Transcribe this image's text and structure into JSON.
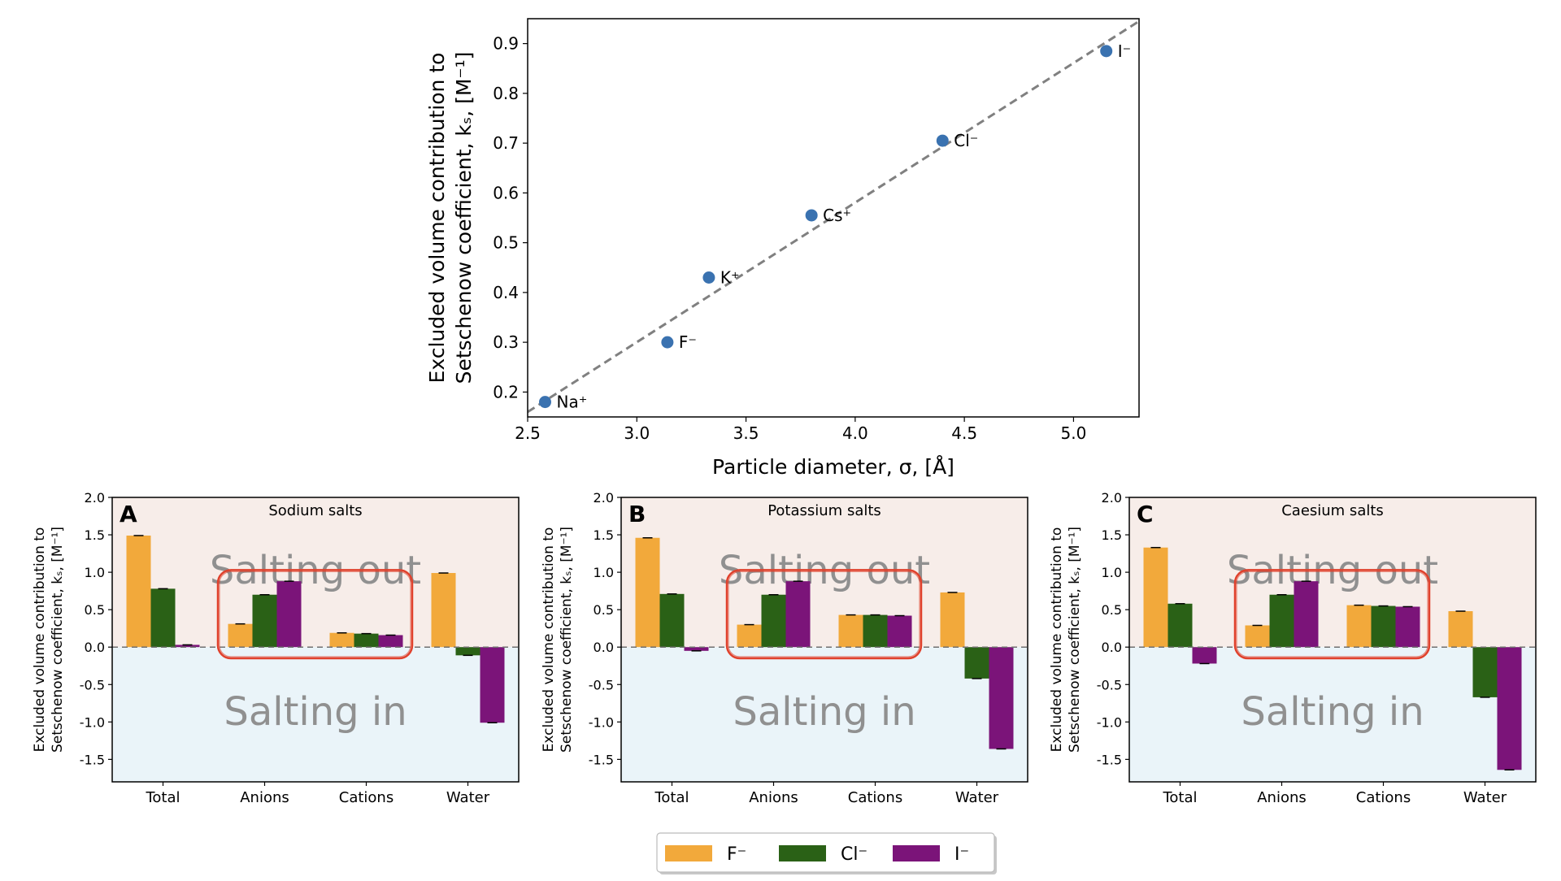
{
  "colors": {
    "f": "#f2a93b",
    "cl": "#2a6116",
    "i": "#7b1479",
    "scatter_point": "#3a72b0",
    "fit_line": "#808080",
    "bg_out": "#f7ede9",
    "bg_in": "#eaf4f9",
    "highlight_box": "#e0412c",
    "region_text": "#909090"
  },
  "legend": {
    "items": [
      {
        "key": "f",
        "label": "F⁻"
      },
      {
        "key": "cl",
        "label": "Cl⁻"
      },
      {
        "key": "i",
        "label": "I⁻"
      }
    ]
  },
  "chart_data": [
    {
      "type": "scatter",
      "xlabel": "Particle diameter, σ, [Å]",
      "ylabel_line1": "Excluded volume contribution to",
      "ylabel_line2": "Setschenow coefficient, kₛ, [M⁻¹]",
      "xlim": [
        2.5,
        5.3
      ],
      "ylim": [
        0.15,
        0.95
      ],
      "xticks": [
        2.5,
        3.0,
        3.5,
        4.0,
        4.5,
        5.0
      ],
      "yticks": [
        0.2,
        0.3,
        0.4,
        0.5,
        0.6,
        0.7,
        0.8,
        0.9
      ],
      "points": [
        {
          "label": "Na⁺",
          "x": 2.58,
          "y": 0.18
        },
        {
          "label": "F⁻",
          "x": 3.14,
          "y": 0.3
        },
        {
          "label": "K⁺",
          "x": 3.33,
          "y": 0.43
        },
        {
          "label": "Cs⁺",
          "x": 3.8,
          "y": 0.555
        },
        {
          "label": "Cl⁻",
          "x": 4.4,
          "y": 0.705
        },
        {
          "label": "I⁻",
          "x": 5.15,
          "y": 0.885
        }
      ],
      "fit_line": {
        "x": [
          2.5,
          5.3
        ],
        "y": [
          0.16,
          0.945
        ]
      }
    },
    {
      "type": "bar",
      "panel_letter": "A",
      "title": "Sodium salts",
      "categories": [
        "Total",
        "Anions",
        "Cations",
        "Water"
      ],
      "series": [
        {
          "key": "f",
          "name": "F⁻",
          "values": [
            1.49,
            0.31,
            0.19,
            0.99
          ]
        },
        {
          "key": "cl",
          "name": "Cl⁻",
          "values": [
            0.78,
            0.7,
            0.18,
            -0.11
          ]
        },
        {
          "key": "i",
          "name": "I⁻",
          "values": [
            0.03,
            0.88,
            0.16,
            -1.01
          ]
        }
      ],
      "ylim": [
        -1.8,
        2.0
      ],
      "yticks": [
        -1.5,
        -1.0,
        -0.5,
        0.0,
        0.5,
        1.0,
        1.5,
        2.0
      ],
      "ylabel_line1": "Excluded volume contribution to",
      "ylabel_line2": "Setschenow coefficient, kₛ, [M⁻¹]",
      "region_out": "Salting out",
      "region_in": "Salting in"
    },
    {
      "type": "bar",
      "panel_letter": "B",
      "title": "Potassium salts",
      "categories": [
        "Total",
        "Anions",
        "Cations",
        "Water"
      ],
      "series": [
        {
          "key": "f",
          "name": "F⁻",
          "values": [
            1.46,
            0.3,
            0.43,
            0.73
          ]
        },
        {
          "key": "cl",
          "name": "Cl⁻",
          "values": [
            0.71,
            0.7,
            0.43,
            -0.42
          ]
        },
        {
          "key": "i",
          "name": "I⁻",
          "values": [
            -0.05,
            0.88,
            0.42,
            -1.36
          ]
        }
      ],
      "ylim": [
        -1.8,
        2.0
      ],
      "yticks": [
        -1.5,
        -1.0,
        -0.5,
        0.0,
        0.5,
        1.0,
        1.5,
        2.0
      ],
      "ylabel_line1": "Excluded volume contribution to",
      "ylabel_line2": "Setschenow coefficient, kₛ, [M⁻¹]",
      "region_out": "Salting out",
      "region_in": "Salting in"
    },
    {
      "type": "bar",
      "panel_letter": "C",
      "title": "Caesium salts",
      "categories": [
        "Total",
        "Anions",
        "Cations",
        "Water"
      ],
      "series": [
        {
          "key": "f",
          "name": "F⁻",
          "values": [
            1.33,
            0.29,
            0.56,
            0.48
          ]
        },
        {
          "key": "cl",
          "name": "Cl⁻",
          "values": [
            0.58,
            0.7,
            0.55,
            -0.67
          ]
        },
        {
          "key": "i",
          "name": "I⁻",
          "values": [
            -0.22,
            0.88,
            0.54,
            -1.64
          ]
        }
      ],
      "ylim": [
        -1.8,
        2.0
      ],
      "yticks": [
        -1.5,
        -1.0,
        -0.5,
        0.0,
        0.5,
        1.0,
        1.5,
        2.0
      ],
      "ylabel_line1": "Excluded volume contribution to",
      "ylabel_line2": "Setschenow coefficient, kₛ, [M⁻¹]",
      "region_out": "Salting out",
      "region_in": "Salting in"
    }
  ]
}
